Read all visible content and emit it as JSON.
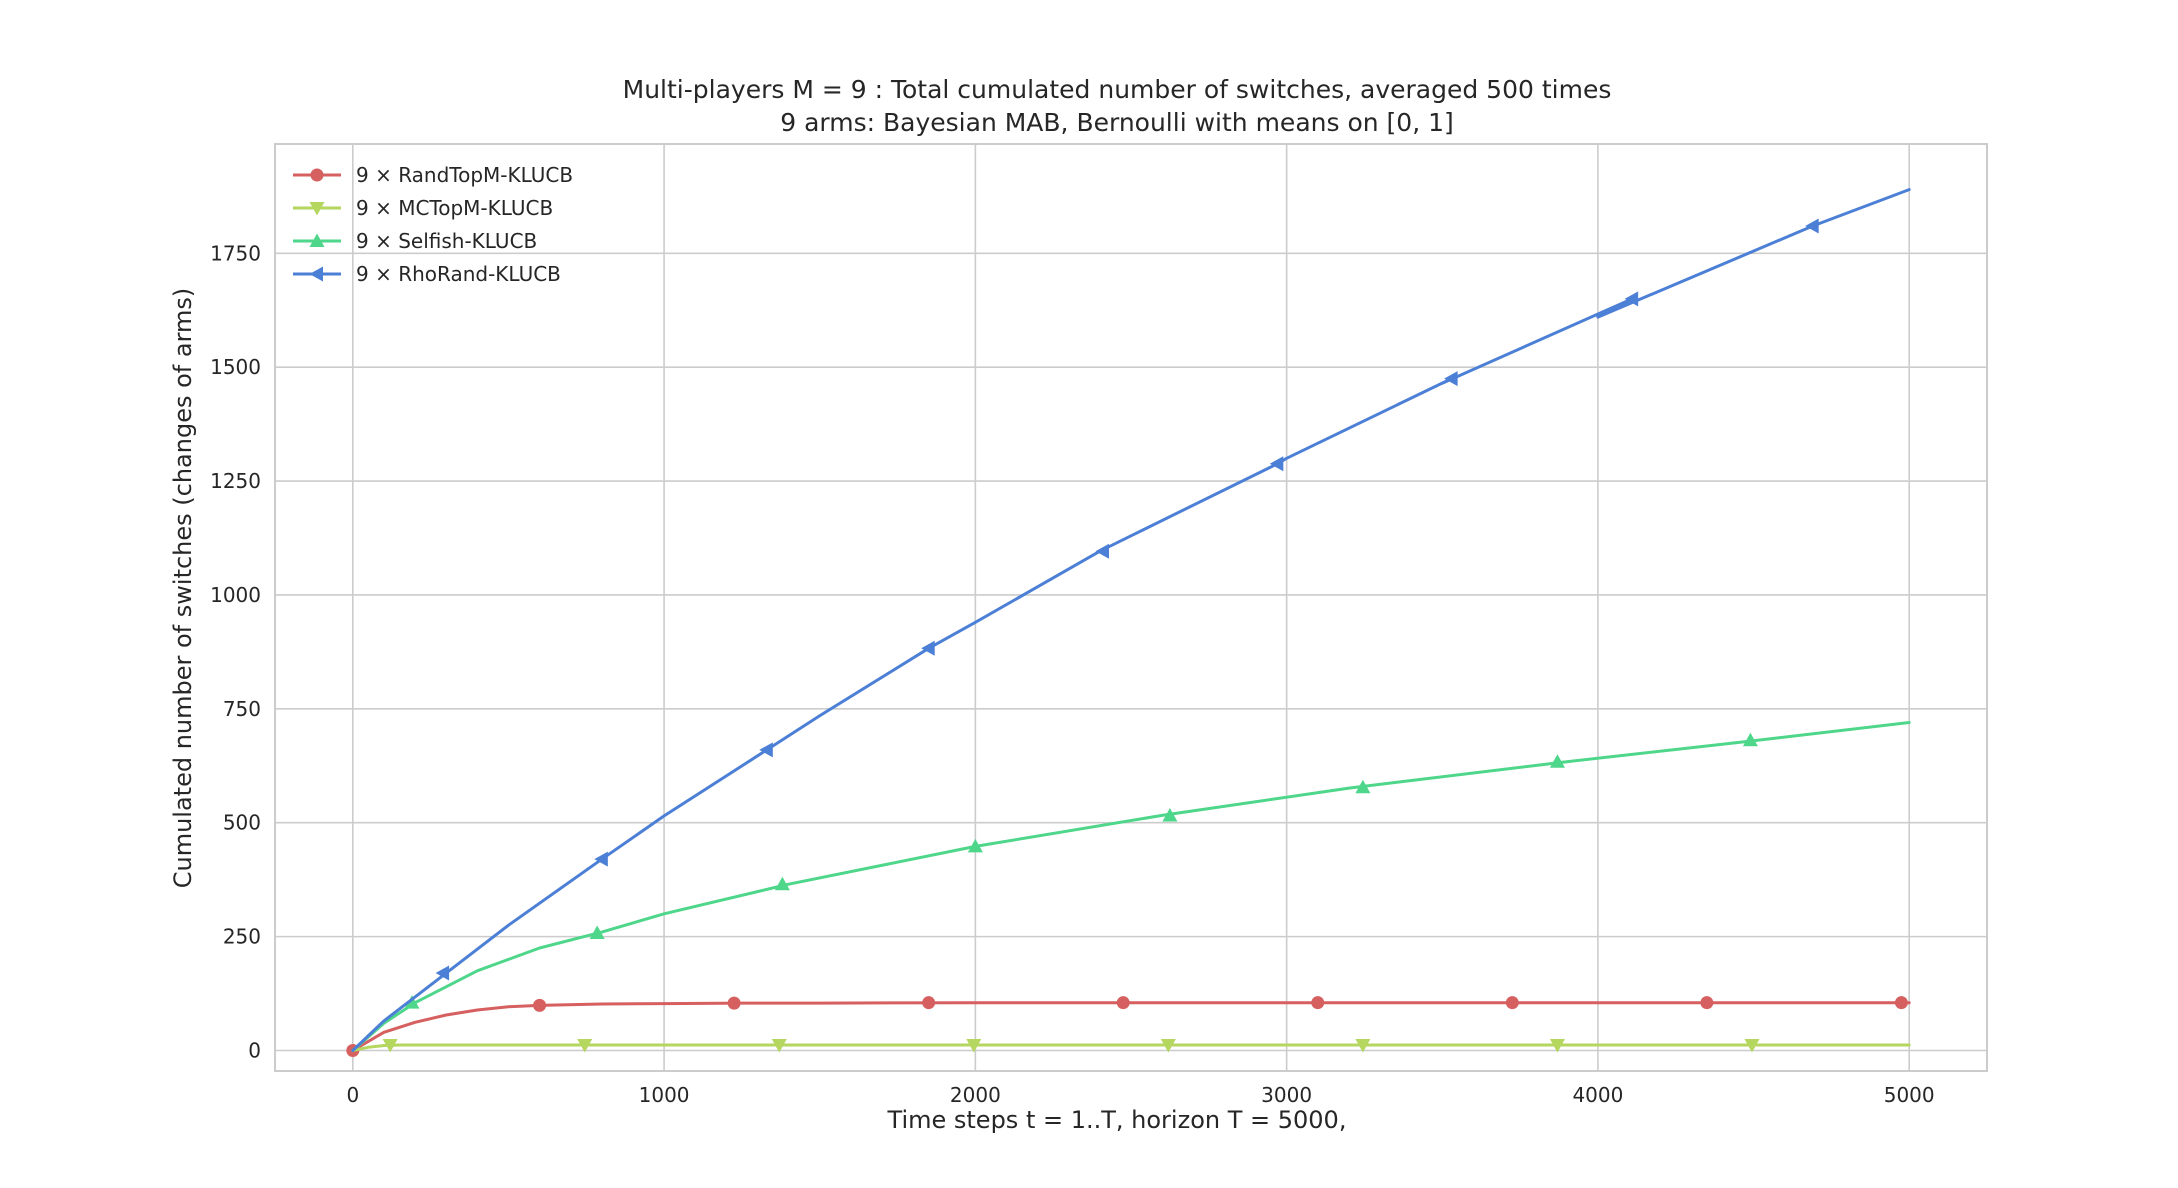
{
  "chart_data": {
    "type": "line",
    "title": "Multi-players M = 9 : Total cumulated number of switches, averaged 500 times",
    "subtitle": "9 arms: Bayesian MAB, Bernoulli with means on [0, 1]",
    "xlabel": "Time steps t = 1..T, horizon T = 5000,",
    "ylabel": "Cumulated number of switches (changes of arms)",
    "xlim": [
      -250,
      5250
    ],
    "ylim": [
      -45,
      1990
    ],
    "xticks": [
      0,
      1000,
      2000,
      3000,
      4000,
      5000
    ],
    "xtick_labels": [
      "0",
      "1000",
      "2000",
      "3000",
      "4000",
      "5000"
    ],
    "yticks": [
      0,
      250,
      500,
      750,
      1000,
      1250,
      1500,
      1750
    ],
    "ytick_labels": [
      "0",
      "250",
      "500",
      "750",
      "1000",
      "1250",
      "1500",
      "1750"
    ],
    "grid": true,
    "legend_position": "top-left",
    "series": [
      {
        "name": "9 × RandTopM-KLUCB",
        "color": "#d65f5f",
        "marker": "circle",
        "x": [
          0,
          100,
          200,
          300,
          400,
          500,
          600,
          800,
          1000,
          1250,
          1500,
          2000,
          2500,
          3000,
          3500,
          4000,
          4500,
          5000
        ],
        "y": [
          0,
          40,
          62,
          78,
          89,
          96,
          99,
          102,
          103,
          104,
          104,
          105,
          105,
          105,
          105,
          105,
          105,
          105
        ],
        "marker_x": [
          0,
          600,
          1225,
          1850,
          2475,
          3100,
          3725,
          4350,
          4975
        ],
        "marker_y": [
          0,
          99,
          104,
          105,
          105,
          105,
          105,
          105,
          105
        ]
      },
      {
        "name": "9 × MCTopM-KLUCB",
        "color": "#b5d65f",
        "marker": "triangle-down",
        "x": [
          0,
          50,
          100,
          150,
          300,
          1000,
          2000,
          3000,
          4000,
          5000
        ],
        "y": [
          0,
          7,
          11,
          12,
          12,
          12,
          12,
          12,
          12,
          12
        ],
        "marker_x": [
          120,
          745,
          1370,
          1995,
          2620,
          3245,
          3870,
          4495
        ],
        "marker_y": [
          12,
          12,
          12,
          12,
          12,
          12,
          12,
          12
        ]
      },
      {
        "name": "9 × Selfish-KLUCB",
        "color": "#4ed68a",
        "marker": "triangle-up",
        "x": [
          0,
          100,
          200,
          400,
          600,
          800,
          1000,
          1400,
          2000,
          2600,
          3200,
          3900,
          4500,
          5000
        ],
        "y": [
          0,
          60,
          105,
          175,
          225,
          260,
          300,
          365,
          448,
          516,
          576,
          634,
          680,
          720
        ],
        "marker_x": [
          190,
          785,
          1380,
          2000,
          2625,
          3245,
          3870,
          4490
        ],
        "marker_y": [
          105,
          258,
          365,
          448,
          516,
          578,
          634,
          681
        ]
      },
      {
        "name": "9 × RhoRand-KLUCB",
        "color": "#4c7fd6",
        "marker": "triangle-left",
        "x": [
          0,
          100,
          300,
          500,
          800,
          1000,
          1330,
          1500,
          1850,
          2000,
          2400,
          2500,
          2970,
          3000,
          3530,
          3500,
          4110,
          4000,
          4690,
          5000
        ],
        "y": [
          0,
          65,
          170,
          275,
          420,
          515,
          660,
          735,
          883,
          940,
          1096,
          1130,
          1288,
          1300,
          1475,
          1465,
          1650,
          1610,
          1810,
          1890
        ],
        "marker_x": [
          290,
          800,
          1330,
          1850,
          2410,
          2970,
          3530,
          4110,
          4690
        ],
        "marker_y": [
          170,
          420,
          660,
          883,
          1096,
          1288,
          1475,
          1650,
          1810
        ]
      }
    ]
  }
}
